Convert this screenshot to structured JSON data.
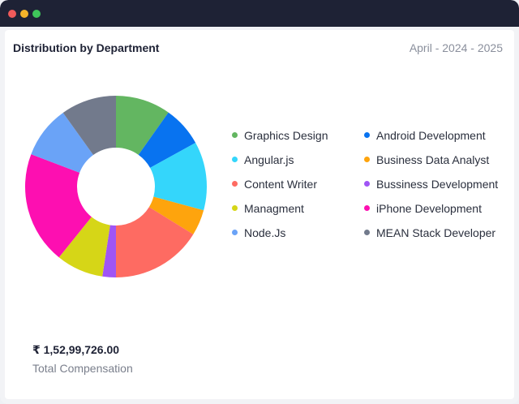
{
  "window": {
    "controls": [
      {
        "name": "close",
        "color": "#f05a5a"
      },
      {
        "name": "minimize",
        "color": "#f5b42a"
      },
      {
        "name": "maximize",
        "color": "#3fc65a"
      }
    ],
    "titlebar_color": "#1e2235"
  },
  "card": {
    "title": "Distribution by Department",
    "date_range": "April - 2024 - 2025"
  },
  "summary": {
    "amount": "₹ 1,52,99,726.00",
    "label": "Total Compensation"
  },
  "chart_data": {
    "type": "pie",
    "style": "donut",
    "title": "",
    "start": "12 o'clock, clockwise",
    "slices": [
      {
        "label": "Graphics Design",
        "value": 9.8,
        "color": "#63b661"
      },
      {
        "label": "Android Development",
        "value": 7.2,
        "color": "#0873f0"
      },
      {
        "label": "Angular.js",
        "value": 12.2,
        "color": "#34d6fb"
      },
      {
        "label": "Business Data Analyst",
        "value": 4.6,
        "color": "#fea40d"
      },
      {
        "label": "Content Writer",
        "value": 16.2,
        "color": "#fe6b62"
      },
      {
        "label": "Bussiness Development",
        "value": 2.4,
        "color": "#a055f5"
      },
      {
        "label": "Managment",
        "value": 8.4,
        "color": "#d6d617"
      },
      {
        "label": "iPhone Development",
        "value": 20.0,
        "color": "#fd0fb1"
      },
      {
        "label": "Node.Js",
        "value": 9.3,
        "color": "#6aa3f7"
      },
      {
        "label": "MEAN Stack Developer",
        "value": 9.9,
        "color": "#727a8c"
      }
    ],
    "legend_order": [
      "Graphics Design",
      "Android Development",
      "Angular.js",
      "Business Data Analyst",
      "Content Writer",
      "Bussiness Development",
      "Managment",
      "iPhone Development",
      "Node.Js",
      "MEAN Stack Developer"
    ],
    "legend_position": "right"
  }
}
